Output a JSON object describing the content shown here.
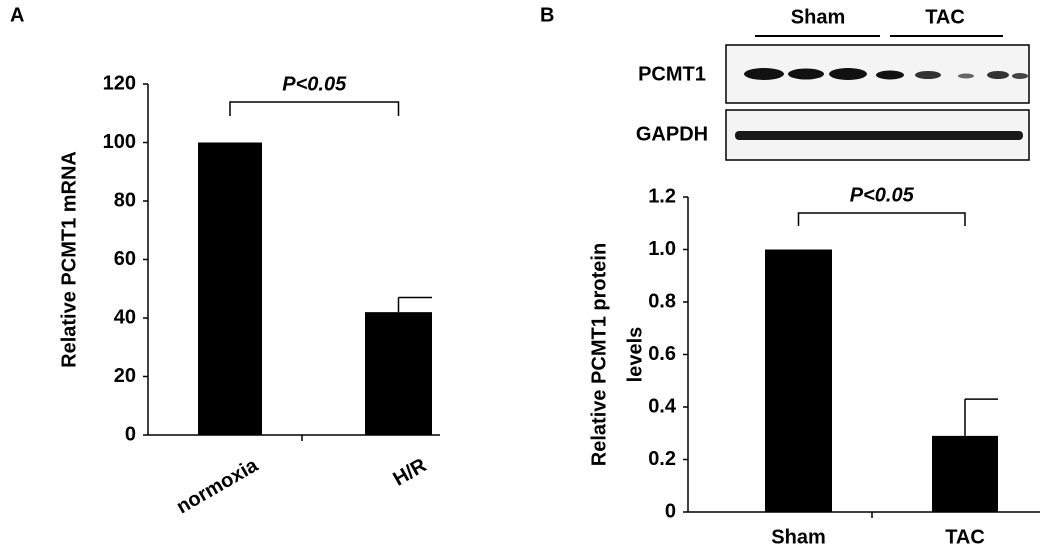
{
  "chart_data": [
    {
      "type": "bar",
      "panel": "A",
      "ylabel": [
        "Relative PCMT1 mRNA"
      ],
      "annotation": "P<0.05",
      "categories": [
        "normoxia",
        "H/R"
      ],
      "values": [
        100,
        42
      ],
      "errors": [
        null,
        5
      ],
      "color": "#000000",
      "ylim": [
        0,
        120
      ],
      "yticks": [
        0,
        20,
        40,
        60,
        80,
        100,
        120
      ]
    },
    {
      "type": "bar",
      "panel": "B",
      "ylabel": [
        "Relative PCMT1 protein",
        "levels"
      ],
      "annotation": "P<0.05",
      "categories": [
        "Sham",
        "TAC"
      ],
      "values": [
        1.0,
        0.29
      ],
      "errors": [
        null,
        0.14
      ],
      "color": "#000000",
      "ylim": [
        0,
        1.2
      ],
      "yticks": [
        0,
        0.2,
        0.4,
        0.6,
        0.8,
        {
          "value": 1,
          "label": "1.0"
        },
        1.2
      ]
    }
  ],
  "blot": {
    "groups": [
      "Sham",
      "TAC"
    ],
    "rows": [
      "PCMT1",
      "GAPDH"
    ]
  }
}
